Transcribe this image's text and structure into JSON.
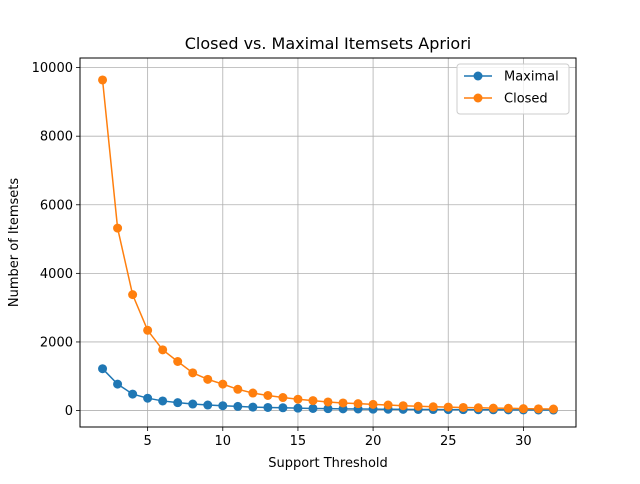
{
  "chart_data": {
    "type": "line",
    "title": "Closed vs. Maximal Itemsets Apriori",
    "xlabel": "Support Threshold",
    "ylabel": "Number of Itemsets",
    "xlim": [
      0.5,
      33.5
    ],
    "ylim": [
      -480,
      10280
    ],
    "xticks": [
      5,
      10,
      15,
      20,
      25,
      30
    ],
    "yticks": [
      0,
      2000,
      4000,
      6000,
      8000,
      10000
    ],
    "grid": true,
    "legend_position": "top-right",
    "x": [
      2,
      3,
      4,
      5,
      6,
      7,
      8,
      9,
      10,
      11,
      12,
      13,
      14,
      15,
      16,
      17,
      18,
      19,
      20,
      21,
      22,
      23,
      24,
      25,
      26,
      27,
      28,
      29,
      30,
      31,
      32
    ],
    "series": [
      {
        "name": "Maximal",
        "color": "#1f77b4",
        "marker": "circle",
        "values": [
          1220,
          770,
          480,
          360,
          280,
          230,
          190,
          160,
          140,
          120,
          100,
          90,
          80,
          70,
          60,
          55,
          50,
          45,
          40,
          38,
          35,
          32,
          30,
          28,
          26,
          24,
          22,
          20,
          18,
          16,
          15
        ]
      },
      {
        "name": "Closed",
        "color": "#ff7f0e",
        "marker": "circle",
        "values": [
          9640,
          5320,
          3380,
          2340,
          1770,
          1430,
          1100,
          910,
          770,
          620,
          510,
          440,
          380,
          330,
          290,
          250,
          220,
          200,
          180,
          160,
          140,
          125,
          110,
          100,
          90,
          80,
          70,
          65,
          55,
          50,
          45
        ]
      }
    ]
  }
}
